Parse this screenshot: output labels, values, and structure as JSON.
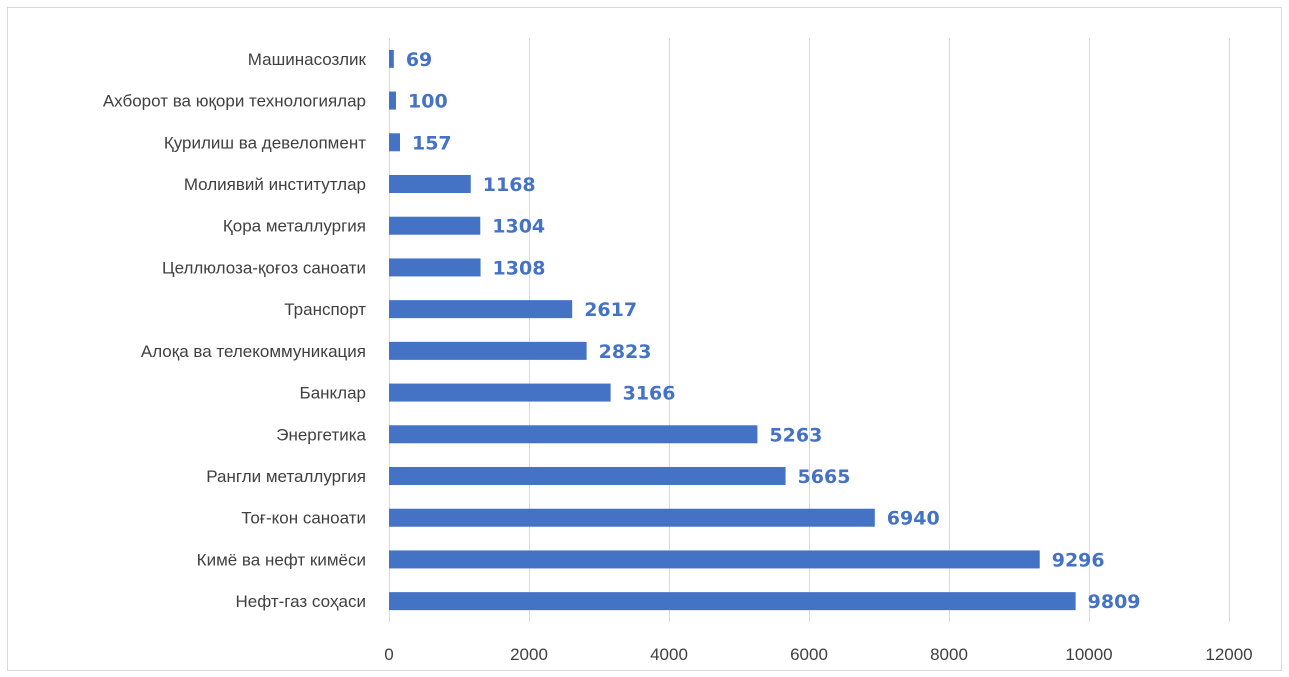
{
  "chart_data": {
    "type": "bar",
    "orientation": "horizontal",
    "categories": [
      "Машинасозлик",
      "Ахборот ва юқори технологиялар",
      "Қурилиш ва девелопмент",
      "Молиявий институтлар",
      "Қора металлургия",
      "Целлюлоза-қоғоз саноати",
      "Транспорт",
      "Алоқа ва телекоммуникация",
      "Банклар",
      "Энергетика",
      "Рангли металлургия",
      "Тоғ-кон саноати",
      "Кимё ва нефт кимёси",
      "Нефт-газ соҳаси"
    ],
    "values": [
      69,
      100,
      157,
      1168,
      1304,
      1308,
      2617,
      2823,
      3166,
      5263,
      5665,
      6940,
      9296,
      9809
    ],
    "xlim": [
      0,
      12000
    ],
    "xticks": [
      0,
      2000,
      4000,
      6000,
      8000,
      10000,
      12000
    ],
    "grid": "vertical",
    "data_labels": true,
    "title": "",
    "xlabel": "",
    "ylabel": "",
    "colors": {
      "bar": "#4472c4",
      "label": "#4472c4",
      "grid": "#d9d9d9",
      "text": "#404040"
    }
  }
}
